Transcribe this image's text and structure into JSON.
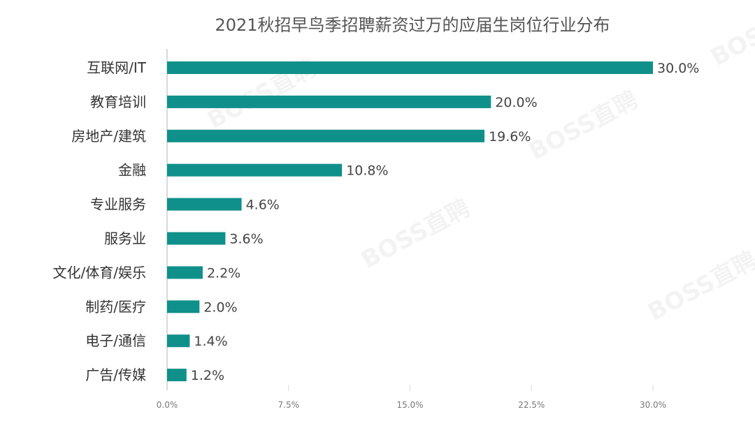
{
  "watermark": "BOSS直聘",
  "chart_data": {
    "type": "bar",
    "orientation": "horizontal",
    "title": "2021秋招早鸟季招聘薪资过万的应届生岗位行业分布",
    "categories": [
      "互联网/IT",
      "教育培训",
      "房地产/建筑",
      "金融",
      "专业服务",
      "服务业",
      "文化/体育/娱乐",
      "制药/医疗",
      "电子/通信",
      "广告/传媒"
    ],
    "values": [
      30.0,
      20.0,
      19.6,
      10.8,
      4.6,
      3.6,
      2.2,
      2.0,
      1.4,
      1.2
    ],
    "value_labels": [
      "30.0%",
      "20.0%",
      "19.6%",
      "10.8%",
      "4.6%",
      "3.6%",
      "2.2%",
      "2.0%",
      "1.4%",
      "1.2%"
    ],
    "xticks": [
      0,
      7.5,
      15,
      22.5,
      30
    ],
    "xtick_labels": [
      "0.0%",
      "7.5%",
      "15.0%",
      "22.5%",
      "30.0%"
    ],
    "xlim": [
      0,
      30
    ],
    "grid": false,
    "bar_color": "#10908a",
    "axis_color": "#d9d9d9"
  }
}
